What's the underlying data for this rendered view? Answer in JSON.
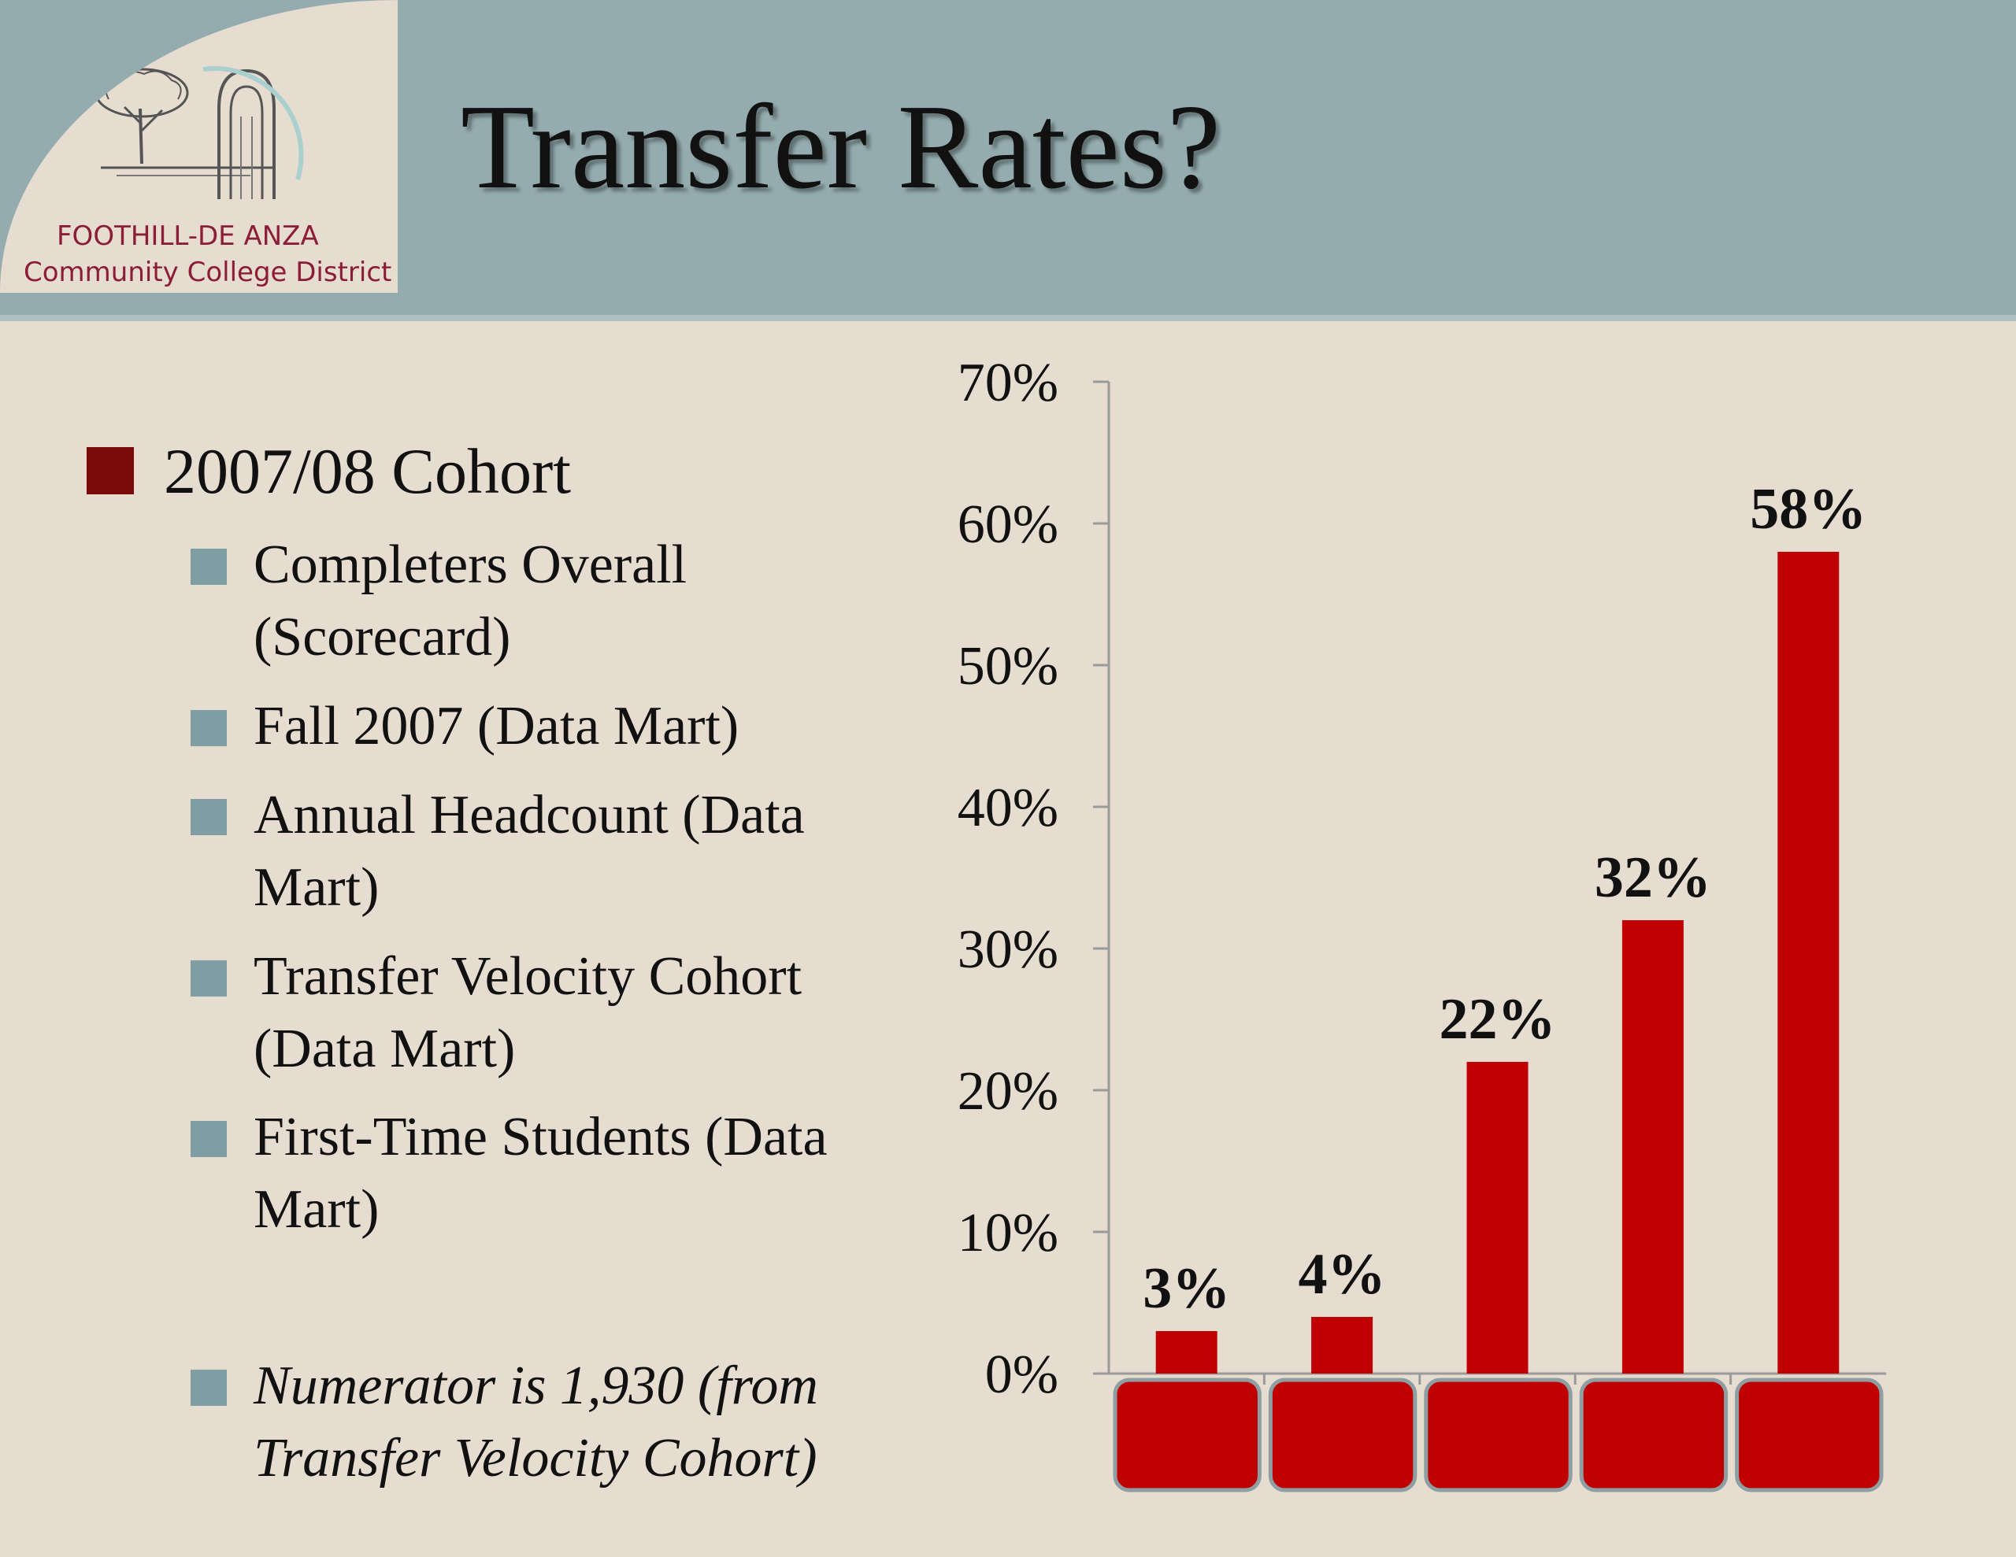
{
  "slide": {
    "title": "Transfer Rates?",
    "logo": {
      "line1": "FOOTHILL-DE ANZA",
      "line2": "Community College District"
    },
    "bullets": {
      "cohort": "2007/08 Cohort",
      "items": [
        [
          "Completers Overall",
          "(Scorecard)"
        ],
        [
          "Fall 2007 (Data Mart)"
        ],
        [
          "Annual Headcount (Data",
          "Mart)"
        ],
        [
          "Transfer Velocity Cohort",
          "(Data Mart)"
        ],
        [
          "First-Time Students (Data",
          "Mart)"
        ]
      ],
      "note": [
        "Numerator is 1,930 (from",
        "Transfer Velocity Cohort)"
      ]
    },
    "colors": {
      "header": "#94acaf",
      "background": "#e6dcd0",
      "bar": "#c00000",
      "bullet_l1": "#7a0a0a",
      "bullet_l2": "#7e9ea4",
      "logo_text": "#8b1d38"
    }
  },
  "chart_data": {
    "type": "bar",
    "categories": [
      "",
      "",
      "",
      "",
      ""
    ],
    "values": [
      3,
      4,
      22,
      32,
      58
    ],
    "data_labels": [
      "3%",
      "4%",
      "22%",
      "32%",
      "58%"
    ],
    "y_ticks": [
      "0%",
      "10%",
      "20%",
      "30%",
      "40%",
      "50%",
      "60%",
      "70%"
    ],
    "ylim": [
      0,
      70
    ],
    "title": "",
    "xlabel": "",
    "ylabel": "",
    "grid": false,
    "legend": "none",
    "bar_color": "#c00000"
  }
}
